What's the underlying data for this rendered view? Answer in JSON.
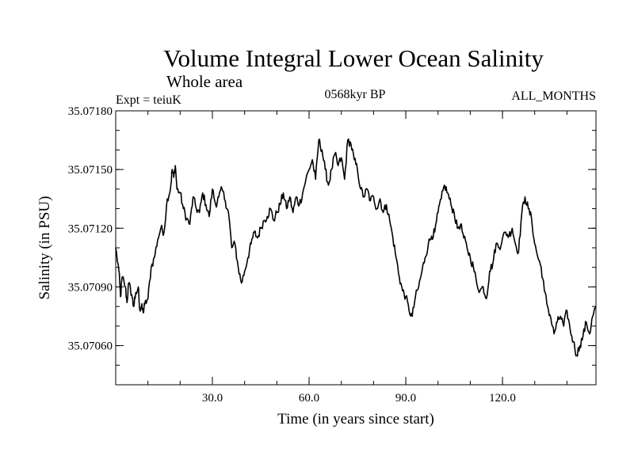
{
  "chart_data": {
    "type": "line",
    "title": "Volume Integral Lower Ocean Salinity",
    "subtitle": "Whole area",
    "expt_label": "Expt = teiuK",
    "period_label": "0568kyr BP",
    "months_label": "ALL_MONTHS",
    "xlabel": "Time (in years since start)",
    "ylabel": "Salinity (in PSU)",
    "xlim": [
      0,
      149
    ],
    "ylim": [
      35.0704,
      35.0718
    ],
    "x_ticks": [
      30,
      60,
      90,
      120
    ],
    "x_tick_labels": [
      "30.0",
      "60.0",
      "90.0",
      "120.0"
    ],
    "y_ticks": [
      35.0706,
      35.0709,
      35.0712,
      35.0715,
      35.0718
    ],
    "y_tick_labels": [
      "35.07060",
      "35.07090",
      "35.07120",
      "35.07150",
      "35.07180"
    ],
    "series": [
      {
        "name": "salinity",
        "color": "#000000",
        "x": [
          0,
          1,
          1.5,
          2,
          3,
          3.5,
          4,
          5,
          5.5,
          6,
          7,
          7.5,
          8,
          8.5,
          9,
          10,
          11,
          12,
          13,
          14,
          15,
          16,
          17,
          17.5,
          18,
          18.5,
          19,
          20,
          21,
          22,
          23,
          24,
          25,
          26,
          27,
          28,
          29,
          30,
          31,
          32,
          33,
          34,
          35,
          36,
          37,
          38,
          39,
          40,
          41,
          42,
          43,
          44,
          45,
          46,
          47,
          48,
          49,
          50,
          51,
          52,
          53,
          54,
          55,
          56,
          57,
          58,
          59,
          60,
          61,
          62,
          63,
          64,
          65,
          66,
          67,
          68,
          69,
          70,
          71,
          72,
          73,
          74,
          75,
          76,
          77,
          78,
          79,
          80,
          81,
          82,
          83,
          84,
          85,
          86,
          87,
          88,
          89,
          90,
          91,
          92,
          93,
          94,
          95,
          96,
          97,
          98,
          99,
          100,
          101,
          102,
          103,
          104,
          105,
          106,
          107,
          108,
          109,
          110,
          111,
          112,
          113,
          114,
          115,
          116,
          117,
          118,
          119,
          120,
          121,
          122,
          123,
          124,
          125,
          126,
          127,
          128,
          129,
          130,
          131,
          132,
          133,
          134,
          135,
          136,
          137,
          138,
          139,
          140,
          141,
          142,
          143,
          144,
          145,
          146,
          147,
          148,
          149
        ],
        "values": [
          35.0711,
          35.07098,
          35.07085,
          35.07095,
          35.0709,
          35.07082,
          35.07092,
          35.07086,
          35.0708,
          35.07084,
          35.0709,
          35.07078,
          35.0708,
          35.07077,
          35.07081,
          35.07084,
          35.071,
          35.07105,
          35.07114,
          35.0712,
          35.07118,
          35.07135,
          35.0714,
          35.0715,
          35.07146,
          35.07152,
          35.0714,
          35.07138,
          35.0713,
          35.07125,
          35.07122,
          35.07136,
          35.0713,
          35.07128,
          35.07138,
          35.07132,
          35.07126,
          35.0714,
          35.07132,
          35.07136,
          35.0714,
          35.07134,
          35.07128,
          35.0711,
          35.07112,
          35.071,
          35.07092,
          35.07098,
          35.07105,
          35.07112,
          35.07118,
          35.07115,
          35.0712,
          35.07124,
          35.07126,
          35.0713,
          35.07124,
          35.07128,
          35.07132,
          35.07138,
          35.0713,
          35.07136,
          35.07128,
          35.07136,
          35.07132,
          35.07138,
          35.07145,
          35.0715,
          35.07155,
          35.07145,
          35.07165,
          35.0716,
          35.0715,
          35.07142,
          35.0715,
          35.07158,
          35.07152,
          35.07156,
          35.07145,
          35.07165,
          35.07163,
          35.07155,
          35.0715,
          35.0714,
          35.07136,
          35.0714,
          35.07134,
          35.07136,
          35.0713,
          35.07135,
          35.07128,
          35.07132,
          35.07124,
          35.07115,
          35.07105,
          35.07095,
          35.07088,
          35.07085,
          35.07078,
          35.07075,
          35.07085,
          35.0709,
          35.07098,
          35.07105,
          35.07112,
          35.07116,
          35.07118,
          35.07128,
          35.07135,
          35.07142,
          35.07138,
          35.07132,
          35.07128,
          35.0712,
          35.07122,
          35.07115,
          35.0711,
          35.07105,
          35.071,
          35.07092,
          35.07088,
          35.0709,
          35.07084,
          35.07098,
          35.07102,
          35.07112,
          35.0711,
          35.07115,
          35.07118,
          35.07116,
          35.0712,
          35.07112,
          35.07108,
          35.07128,
          35.07136,
          35.0713,
          35.07125,
          35.07112,
          35.07105,
          35.071,
          35.07088,
          35.0708,
          35.07074,
          35.07066,
          35.07072,
          35.07075,
          35.0707,
          35.07078,
          35.07068,
          35.07062,
          35.07055,
          35.0706,
          35.07065,
          35.07072,
          35.07066,
          35.07075,
          35.0708
        ]
      }
    ]
  }
}
